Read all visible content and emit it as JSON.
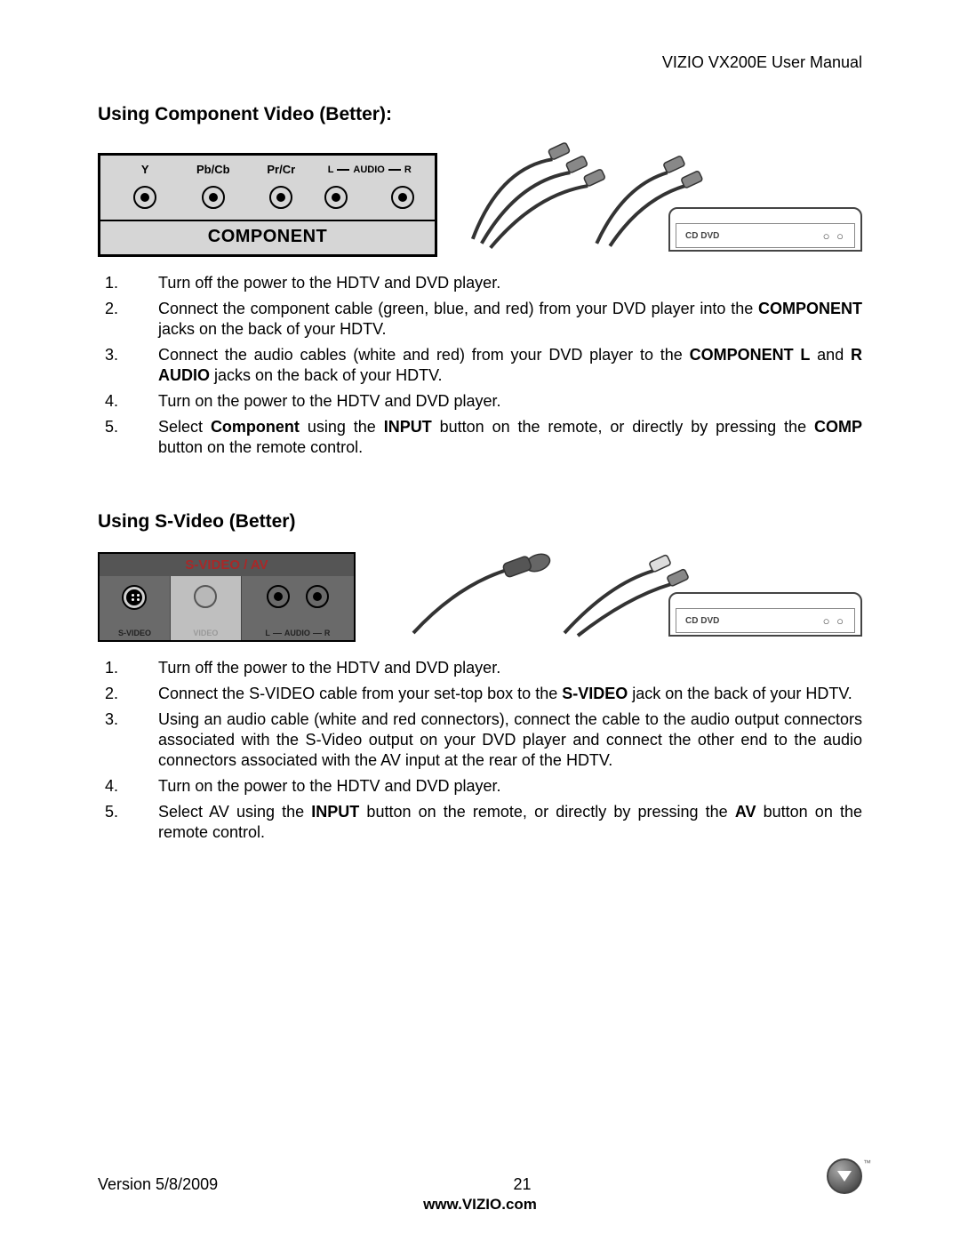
{
  "header": {
    "manual_title": "VIZIO VX200E User Manual"
  },
  "section1": {
    "title": "Using Component Video (Better):",
    "panel": {
      "labels": {
        "y": "Y",
        "pb": "Pb/Cb",
        "pr": "Pr/Cr",
        "audio": "AUDIO",
        "audio_l": "L",
        "audio_r": "R"
      },
      "bottom_label": "COMPONENT"
    },
    "device_label": "CD DVD",
    "steps": [
      "Turn off the power to the HDTV and DVD player.",
      "Connect the component cable (green, blue, and red) from your DVD player into the <b>COMPONENT</b> jacks on the back of your HDTV.",
      "Connect the audio cables (white and red) from your DVD player to the <b>COMPONENT L</b> and <b>R AUDIO</b> jacks on the back of your HDTV.",
      "Turn on the power to the HDTV and DVD player.",
      "Select <b>Component</b> using the <b>INPUT</b> button on the remote, or directly by pressing the <b>COMP</b> button on the remote control."
    ]
  },
  "section2": {
    "title": "Using S-Video (Better)",
    "panel": {
      "title": "S-VIDEO / AV",
      "labels": {
        "svideo": "S-VIDEO",
        "video": "VIDEO",
        "audio": "AUDIO",
        "audio_l": "L",
        "audio_r": "R"
      }
    },
    "device_label": "CD DVD",
    "steps": [
      "Turn off the power to the HDTV and DVD player.",
      "Connect the S-VIDEO cable from your set-top box to the <b>S-VIDEO</b> jack on the back of your HDTV.",
      "Using an audio cable (white and red connectors), connect the cable to the audio output connectors associated with the S-Video output on your DVD player and connect the other end to the audio connectors associated with the AV input at the rear of the HDTV.",
      "Turn on the power to the HDTV and DVD player.",
      "Select AV using the <b>INPUT</b> button on the remote, or directly by pressing the <b>AV</b> button on the remote control."
    ]
  },
  "footer": {
    "version": "Version 5/8/2009",
    "page_number": "21",
    "url": "www.VIZIO.com",
    "tm": "™"
  },
  "colors": {
    "panel_bg": "#d6d6d6",
    "sv_bg": "#6a6a6a",
    "sv_title_color": "#a82828"
  }
}
